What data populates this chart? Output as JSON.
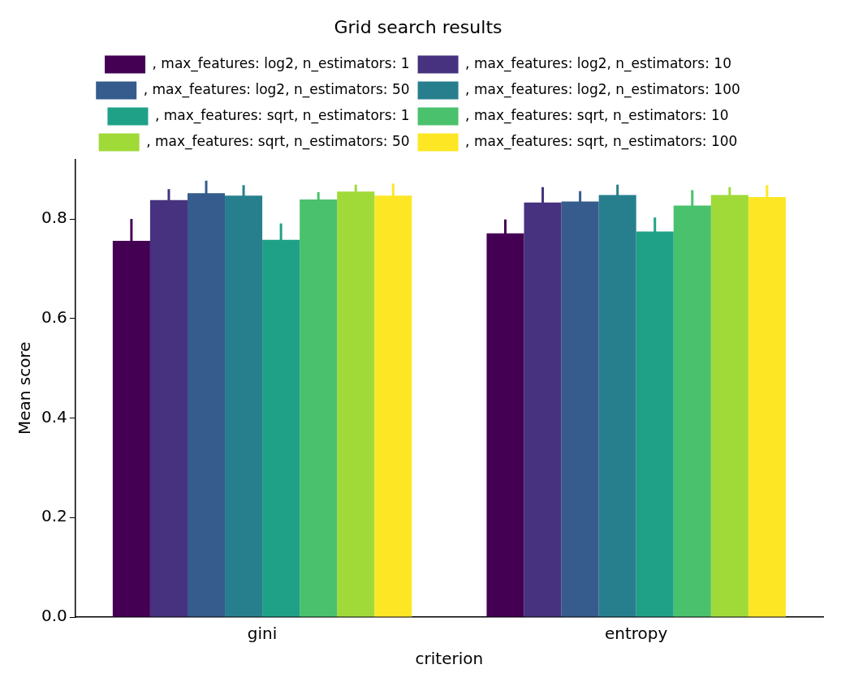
{
  "chart_data": {
    "type": "bar",
    "title": "Grid search results",
    "xlabel": "criterion",
    "ylabel": "Mean score",
    "categories": [
      "gini",
      "entropy"
    ],
    "series": [
      {
        "name": ", max_features: log2, n_estimators: 1",
        "color": "#440154",
        "values": [
          0.756,
          0.771
        ],
        "errors": [
          0.044,
          0.028
        ]
      },
      {
        "name": ", max_features: log2, n_estimators: 10",
        "color": "#46327e",
        "values": [
          0.838,
          0.833
        ],
        "errors": [
          0.022,
          0.031
        ]
      },
      {
        "name": ", max_features: log2, n_estimators: 50",
        "color": "#365c8d",
        "values": [
          0.852,
          0.835
        ],
        "errors": [
          0.025,
          0.021
        ]
      },
      {
        "name": ", max_features: log2, n_estimators: 100",
        "color": "#277f8e",
        "values": [
          0.847,
          0.848
        ],
        "errors": [
          0.021,
          0.021
        ]
      },
      {
        "name": ", max_features: sqrt, n_estimators: 1",
        "color": "#1fa187",
        "values": [
          0.758,
          0.775
        ],
        "errors": [
          0.033,
          0.028
        ]
      },
      {
        "name": ", max_features: sqrt, n_estimators: 10",
        "color": "#4ac16d",
        "values": [
          0.839,
          0.827
        ],
        "errors": [
          0.015,
          0.031
        ]
      },
      {
        "name": ", max_features: sqrt, n_estimators: 50",
        "color": "#a0da39",
        "values": [
          0.855,
          0.848
        ],
        "errors": [
          0.014,
          0.016
        ]
      },
      {
        "name": ", max_features: sqrt, n_estimators: 100",
        "color": "#fde725",
        "values": [
          0.847,
          0.844
        ],
        "errors": [
          0.024,
          0.024
        ]
      }
    ],
    "ylim": [
      0,
      0.92
    ],
    "yticks": [
      {
        "value": 0,
        "label": "0.0"
      },
      0.2,
      0.4,
      0.6,
      0.8
    ],
    "grid": false,
    "legend": "top"
  }
}
